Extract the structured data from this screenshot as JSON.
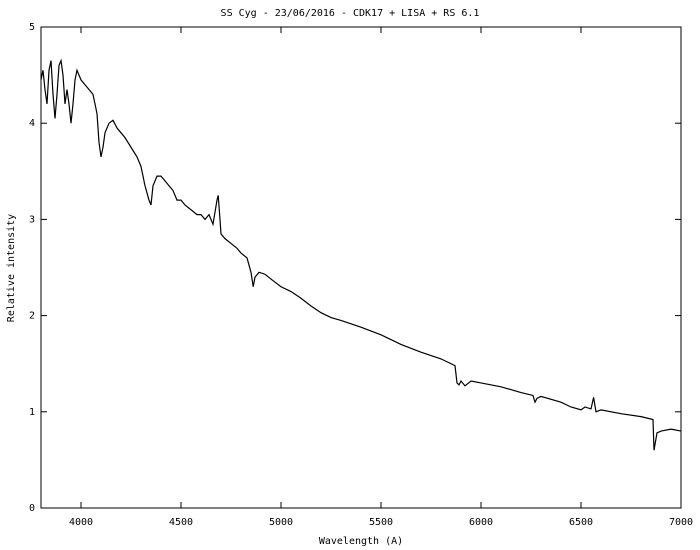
{
  "chart_data": {
    "type": "line",
    "title": "SS Cyg - 23/06/2016 - CDK17 + LISA + RS 6.1",
    "xlabel": "Wavelength (A)",
    "ylabel": "Relative intensity",
    "color": "#000000",
    "xlim": [
      3800,
      7000
    ],
    "xticks": [
      4000,
      4500,
      5000,
      5500,
      6000,
      6500,
      7000
    ],
    "ylim": [
      0,
      5
    ],
    "yticks": [
      0,
      1,
      2,
      3,
      4,
      5
    ],
    "x": [
      3800,
      3810,
      3820,
      3830,
      3840,
      3850,
      3860,
      3870,
      3880,
      3890,
      3900,
      3910,
      3920,
      3930,
      3940,
      3950,
      3960,
      3970,
      3980,
      3990,
      4000,
      4020,
      4040,
      4060,
      4080,
      4090,
      4100,
      4110,
      4120,
      4140,
      4160,
      4180,
      4200,
      4220,
      4250,
      4280,
      4300,
      4320,
      4340,
      4350,
      4360,
      4380,
      4400,
      4420,
      4440,
      4460,
      4480,
      4500,
      4520,
      4550,
      4580,
      4600,
      4620,
      4640,
      4660,
      4680,
      4686,
      4695,
      4700,
      4720,
      4750,
      4780,
      4800,
      4830,
      4850,
      4861,
      4870,
      4890,
      4920,
      4950,
      5000,
      5050,
      5100,
      5150,
      5200,
      5250,
      5300,
      5400,
      5500,
      5600,
      5700,
      5800,
      5870,
      5880,
      5890,
      5900,
      5920,
      5950,
      6000,
      6100,
      6200,
      6260,
      6270,
      6280,
      6300,
      6400,
      6450,
      6500,
      6520,
      6550,
      6563,
      6575,
      6600,
      6700,
      6800,
      6860,
      6865,
      6880,
      6900,
      6950,
      7000
    ],
    "values": [
      4.45,
      4.55,
      4.35,
      4.2,
      4.55,
      4.65,
      4.3,
      4.05,
      4.3,
      4.6,
      4.65,
      4.5,
      4.2,
      4.35,
      4.2,
      4.0,
      4.2,
      4.45,
      4.55,
      4.5,
      4.45,
      4.4,
      4.35,
      4.3,
      4.1,
      3.8,
      3.65,
      3.75,
      3.9,
      4.0,
      4.03,
      3.95,
      3.9,
      3.85,
      3.75,
      3.65,
      3.55,
      3.35,
      3.2,
      3.15,
      3.35,
      3.45,
      3.45,
      3.4,
      3.35,
      3.3,
      3.2,
      3.2,
      3.15,
      3.1,
      3.05,
      3.05,
      3.0,
      3.05,
      2.95,
      3.2,
      3.25,
      3.0,
      2.85,
      2.8,
      2.75,
      2.7,
      2.65,
      2.6,
      2.45,
      2.3,
      2.4,
      2.45,
      2.43,
      2.38,
      2.3,
      2.25,
      2.18,
      2.1,
      2.03,
      1.98,
      1.95,
      1.88,
      1.8,
      1.7,
      1.62,
      1.55,
      1.48,
      1.3,
      1.28,
      1.32,
      1.27,
      1.32,
      1.3,
      1.26,
      1.2,
      1.17,
      1.1,
      1.14,
      1.16,
      1.1,
      1.05,
      1.02,
      1.05,
      1.03,
      1.15,
      1.0,
      1.02,
      0.98,
      0.95,
      0.92,
      0.6,
      0.78,
      0.8,
      0.82,
      0.8
    ]
  }
}
